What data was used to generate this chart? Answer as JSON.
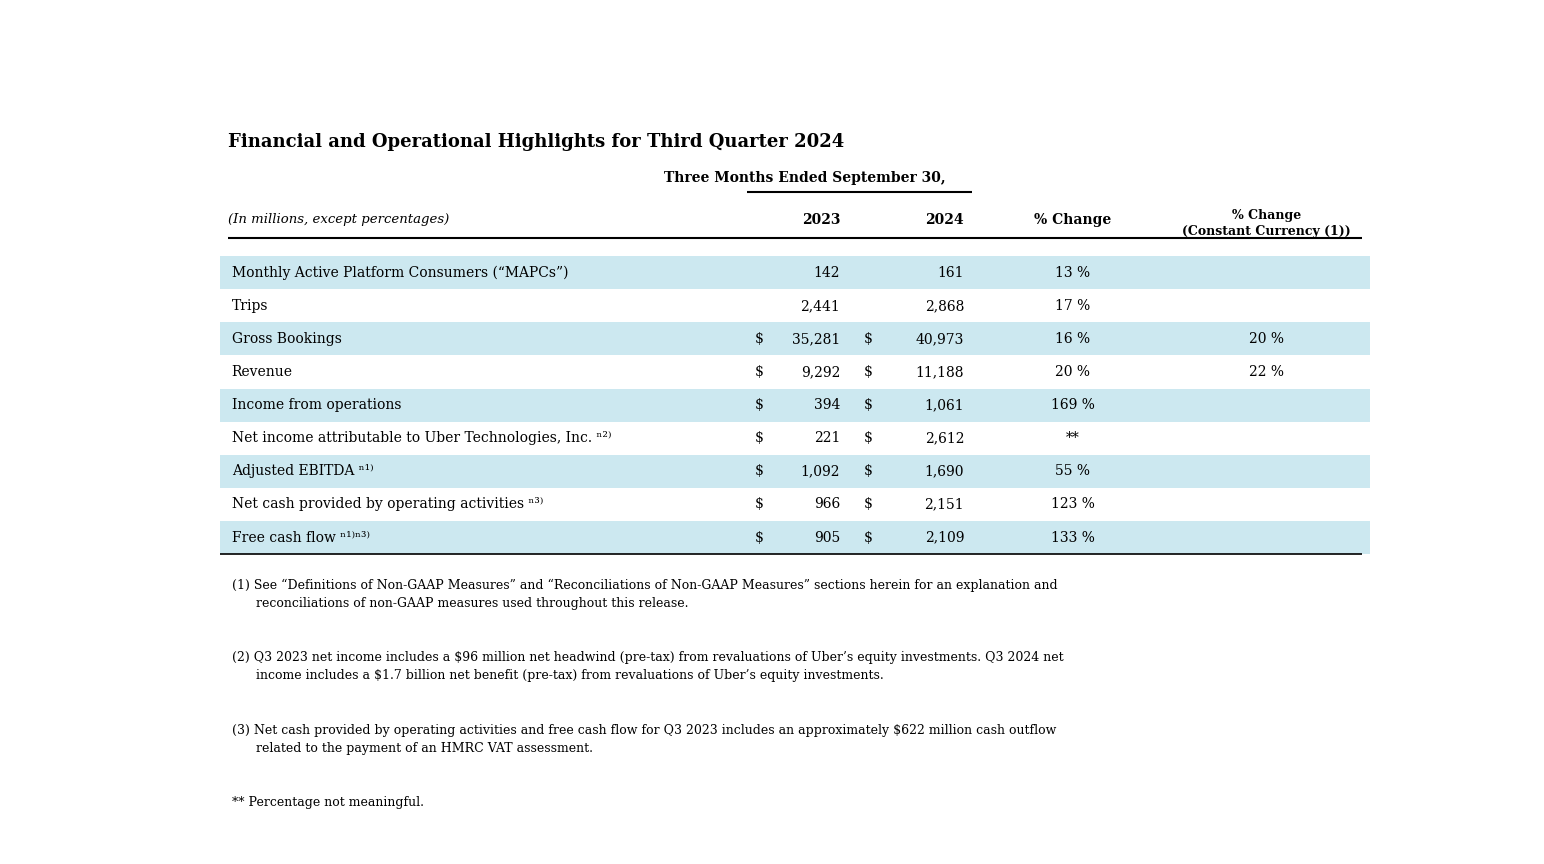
{
  "title": "Financial and Operational Highlights for Third Quarter 2024",
  "header_group": "Three Months Ended September 30,",
  "rows": [
    {
      "label": "Monthly Active Platform Consumers (“MAPCs”)",
      "dollar1": false,
      "val2023": "142",
      "dollar2": false,
      "val2024": "161",
      "pct_change": "13 %",
      "pct_cc": "",
      "shaded": true
    },
    {
      "label": "Trips",
      "dollar1": false,
      "val2023": "2,441",
      "dollar2": false,
      "val2024": "2,868",
      "pct_change": "17 %",
      "pct_cc": "",
      "shaded": false
    },
    {
      "label": "Gross Bookings",
      "dollar1": true,
      "val2023": "35,281",
      "dollar2": true,
      "val2024": "40,973",
      "pct_change": "16 %",
      "pct_cc": "20 %",
      "shaded": true
    },
    {
      "label": "Revenue",
      "dollar1": true,
      "val2023": "9,292",
      "dollar2": true,
      "val2024": "11,188",
      "pct_change": "20 %",
      "pct_cc": "22 %",
      "shaded": false
    },
    {
      "label": "Income from operations",
      "dollar1": true,
      "val2023": "394",
      "dollar2": true,
      "val2024": "1,061",
      "pct_change": "169 %",
      "pct_cc": "",
      "shaded": true
    },
    {
      "label": "Net income attributable to Uber Technologies, Inc. ⁿ²⁾",
      "dollar1": true,
      "val2023": "221",
      "dollar2": true,
      "val2024": "2,612",
      "pct_change": "**",
      "pct_cc": "",
      "shaded": false
    },
    {
      "label": "Adjusted EBITDA ⁿ¹⁾",
      "dollar1": true,
      "val2023": "1,092",
      "dollar2": true,
      "val2024": "1,690",
      "pct_change": "55 %",
      "pct_cc": "",
      "shaded": true
    },
    {
      "label": "Net cash provided by operating activities ⁿ³⁾",
      "dollar1": true,
      "val2023": "966",
      "dollar2": true,
      "val2024": "2,151",
      "pct_change": "123 %",
      "pct_cc": "",
      "shaded": false
    },
    {
      "label": "Free cash flow ⁿ¹⁾ⁿ³⁾",
      "dollar1": true,
      "val2023": "905",
      "dollar2": true,
      "val2024": "2,109",
      "pct_change": "133 %",
      "pct_cc": "",
      "shaded": true
    }
  ],
  "footnote1": "(1) See “Definitions of Non-GAAP Measures” and “Reconciliations of Non-GAAP Measures” sections herein for an explanation and\n      reconciliations of non-GAAP measures used throughout this release.",
  "footnote2": "(2) Q3 2023 net income includes a $96 million net headwind (pre-tax) from revaluations of Uber’s equity investments. Q3 2024 net\n      income includes a $1.7 billion net benefit (pre-tax) from revaluations of Uber’s equity investments.",
  "footnote3": "(3) Net cash provided by operating activities and free cash flow for Q3 2023 includes an approximately $622 million cash outflow\n      related to the payment of an HMRC VAT assessment.",
  "footnote4": "** Percentage not meaningful.",
  "bg_color": "#ffffff",
  "shaded_color": "#cce8f0",
  "text_color": "#000000",
  "col_label_italic": "(In millions, except percentages)",
  "col_2023": "2023",
  "col_2024": "2024",
  "col_pct": "% Change",
  "col_cc": "% Change\n(Constant Currency (1))"
}
